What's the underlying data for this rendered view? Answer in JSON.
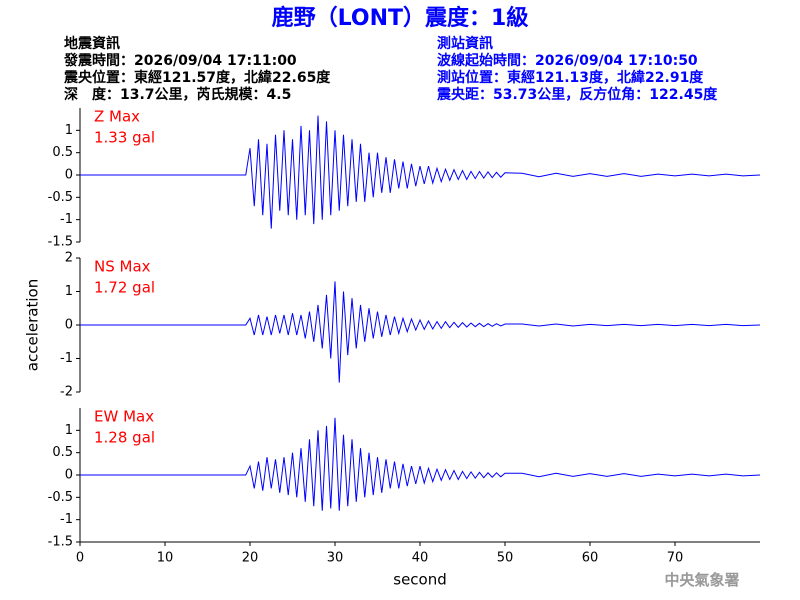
{
  "title": "鹿野（LONT）震度：1級",
  "event_info": [
    "地震資訊",
    "發震時間：2026/09/04 17:11:00",
    "震央位置：東經121.57度，北緯22.65度",
    "深　度：13.7公里，芮氏規模：4.5"
  ],
  "station_info": [
    "測站資訊",
    "波線起始時間：2026/09/04 17:10:50",
    "測站位置：東經121.13度，北緯22.91度",
    "震央距：53.73公里，反方位角：122.45度"
  ],
  "footer": "中央氣象署",
  "chart_data": [
    {
      "type": "line",
      "color": "#0000ff",
      "annotations": [
        "Z Max",
        "1.33 gal"
      ],
      "xlim": [
        0,
        80
      ],
      "ylim": [
        -1.5,
        1.5
      ],
      "yticks": [
        -1.5,
        -1,
        -0.5,
        0,
        0.5,
        1
      ],
      "x": [
        0,
        19.5,
        20,
        20.5,
        21,
        21.5,
        22,
        22.5,
        23,
        23.5,
        24,
        24.5,
        25,
        25.5,
        26,
        26.5,
        27,
        27.5,
        28,
        28.5,
        29,
        29.5,
        30,
        30.5,
        31,
        31.5,
        32,
        32.5,
        33,
        33.5,
        34,
        34.5,
        35,
        35.5,
        36,
        36.5,
        37,
        37.5,
        38,
        38.5,
        39,
        39.5,
        40,
        40.5,
        41,
        41.5,
        42,
        42.5,
        43,
        43.5,
        44,
        44.5,
        45,
        45.5,
        46,
        46.5,
        47,
        47.5,
        48,
        48.5,
        49,
        49.5,
        50,
        52,
        54,
        56,
        58,
        60,
        62,
        64,
        66,
        68,
        70,
        72,
        74,
        76,
        78,
        80
      ],
      "values": [
        0,
        0,
        0.6,
        -0.7,
        0.8,
        -0.9,
        0.7,
        -1.2,
        0.9,
        -0.8,
        1.0,
        -0.9,
        0.8,
        -1.0,
        1.1,
        -0.9,
        1.0,
        -1.1,
        1.33,
        -1.0,
        1.2,
        -0.9,
        1.0,
        -0.8,
        0.9,
        -0.7,
        0.8,
        -0.6,
        0.7,
        -0.6,
        0.5,
        -0.5,
        0.5,
        -0.4,
        0.4,
        -0.4,
        0.35,
        -0.3,
        0.3,
        -0.3,
        0.25,
        -0.25,
        0.2,
        -0.2,
        0.2,
        -0.18,
        0.15,
        -0.15,
        0.13,
        -0.12,
        0.12,
        -0.1,
        0.1,
        -0.1,
        0.08,
        -0.08,
        0.08,
        -0.07,
        0.07,
        -0.06,
        0.06,
        -0.05,
        0.05,
        0.04,
        -0.04,
        0.04,
        -0.03,
        0.03,
        -0.03,
        0.03,
        -0.03,
        0.02,
        -0.02,
        0.02,
        -0.02,
        0.02,
        -0.02,
        0
      ]
    },
    {
      "type": "line",
      "color": "#0000ff",
      "annotations": [
        "NS Max",
        "1.72 gal"
      ],
      "ylabel": "acceleration",
      "xlim": [
        0,
        80
      ],
      "ylim": [
        -2,
        2
      ],
      "yticks": [
        -2,
        -1,
        0,
        1,
        2
      ],
      "x": [
        0,
        19.5,
        20,
        20.5,
        21,
        21.5,
        22,
        22.5,
        23,
        23.5,
        24,
        24.5,
        25,
        25.5,
        26,
        26.5,
        27,
        27.5,
        28,
        28.5,
        29,
        29.5,
        30,
        30.5,
        31,
        31.5,
        32,
        32.5,
        33,
        33.5,
        34,
        34.5,
        35,
        35.5,
        36,
        36.5,
        37,
        37.5,
        38,
        38.5,
        39,
        39.5,
        40,
        40.5,
        41,
        41.5,
        42,
        42.5,
        43,
        43.5,
        44,
        44.5,
        45,
        45.5,
        46,
        46.5,
        47,
        47.5,
        48,
        48.5,
        49,
        49.5,
        50,
        52,
        54,
        56,
        58,
        60,
        62,
        64,
        66,
        68,
        70,
        72,
        74,
        76,
        78,
        80
      ],
      "values": [
        0,
        0,
        0.2,
        -0.3,
        0.3,
        -0.3,
        0.25,
        -0.3,
        0.3,
        -0.25,
        0.3,
        -0.3,
        0.35,
        -0.3,
        0.3,
        -0.4,
        0.4,
        -0.5,
        0.6,
        -0.7,
        0.9,
        -1.0,
        1.3,
        -1.72,
        1.0,
        -0.9,
        0.8,
        -0.7,
        0.6,
        -0.5,
        0.5,
        -0.4,
        0.4,
        -0.35,
        0.3,
        -0.3,
        0.25,
        -0.25,
        0.2,
        -0.2,
        0.18,
        -0.15,
        0.15,
        -0.13,
        0.12,
        -0.12,
        0.1,
        -0.1,
        0.1,
        -0.08,
        0.08,
        -0.07,
        0.07,
        -0.06,
        0.06,
        -0.05,
        0.05,
        -0.05,
        0.04,
        -0.04,
        0.04,
        -0.03,
        0.03,
        0.03,
        -0.03,
        0.03,
        -0.03,
        0.02,
        -0.02,
        0.02,
        -0.02,
        0.02,
        -0.02,
        0.02,
        -0.02,
        0.02,
        -0.02,
        0
      ]
    },
    {
      "type": "line",
      "color": "#0000ff",
      "annotations": [
        "EW Max",
        "1.28 gal"
      ],
      "xlabel": "second",
      "xlim": [
        0,
        80
      ],
      "xticks": [
        0,
        10,
        20,
        30,
        40,
        50,
        60,
        70
      ],
      "ylim": [
        -1.5,
        1.5
      ],
      "yticks": [
        -1.5,
        -1,
        -0.5,
        0,
        0.5,
        1
      ],
      "x": [
        0,
        19.5,
        20,
        20.5,
        21,
        21.5,
        22,
        22.5,
        23,
        23.5,
        24,
        24.5,
        25,
        25.5,
        26,
        26.5,
        27,
        27.5,
        28,
        28.5,
        29,
        29.5,
        30,
        30.5,
        31,
        31.5,
        32,
        32.5,
        33,
        33.5,
        34,
        34.5,
        35,
        35.5,
        36,
        36.5,
        37,
        37.5,
        38,
        38.5,
        39,
        39.5,
        40,
        40.5,
        41,
        41.5,
        42,
        42.5,
        43,
        43.5,
        44,
        44.5,
        45,
        45.5,
        46,
        46.5,
        47,
        47.5,
        48,
        48.5,
        49,
        49.5,
        50,
        52,
        54,
        56,
        58,
        60,
        62,
        64,
        66,
        68,
        70,
        72,
        74,
        76,
        78,
        80
      ],
      "values": [
        0,
        0,
        0.2,
        -0.3,
        0.3,
        -0.35,
        0.4,
        -0.3,
        0.35,
        -0.4,
        0.4,
        -0.45,
        0.5,
        -0.5,
        0.6,
        -0.6,
        0.8,
        -0.7,
        1.0,
        -0.8,
        1.1,
        -0.75,
        1.28,
        -0.8,
        0.9,
        -0.7,
        0.8,
        -0.6,
        0.6,
        -0.5,
        0.5,
        -0.45,
        0.4,
        -0.4,
        0.35,
        -0.3,
        0.3,
        -0.3,
        0.25,
        -0.25,
        0.2,
        -0.2,
        0.2,
        -0.18,
        0.15,
        -0.15,
        0.13,
        -0.12,
        0.12,
        -0.1,
        0.1,
        -0.1,
        0.08,
        -0.08,
        0.07,
        -0.07,
        0.06,
        -0.06,
        0.05,
        -0.05,
        0.05,
        -0.04,
        0.04,
        0.04,
        -0.04,
        0.04,
        -0.03,
        0.03,
        -0.03,
        0.03,
        -0.03,
        0.02,
        -0.02,
        0.02,
        -0.02,
        0.02,
        -0.02,
        0
      ]
    }
  ]
}
